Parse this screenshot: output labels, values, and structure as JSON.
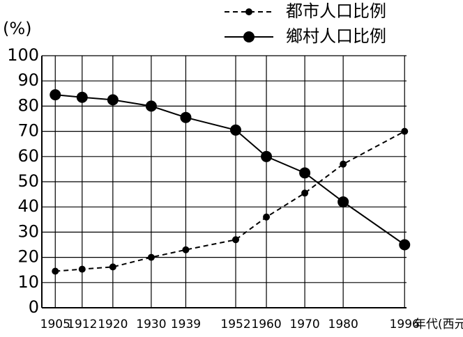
{
  "chart_data": {
    "type": "line",
    "y_label": "(%)",
    "x_label": "年代(西元)",
    "x": [
      1905,
      1912,
      1920,
      1930,
      1939,
      1952,
      1960,
      1970,
      1980,
      1996
    ],
    "series": [
      {
        "name": "都市人口比例",
        "color": "#000000",
        "dash": true,
        "values": [
          14.5,
          15.3,
          16.2,
          20,
          23,
          27,
          36,
          45.5,
          57,
          70
        ]
      },
      {
        "name": "鄉村人口比例",
        "color": "#000000",
        "dash": false,
        "values": [
          84.5,
          83.5,
          82.5,
          80,
          75.5,
          70.5,
          60,
          53.5,
          42,
          25
        ]
      }
    ],
    "xlim": [
      1901.5,
      1996.5
    ],
    "xticks": [
      1905,
      1912,
      1920,
      1930,
      1939,
      1952,
      1960,
      1970,
      1980,
      1996
    ],
    "ylim": [
      0,
      100
    ],
    "yticks": [
      0,
      10,
      20,
      30,
      40,
      50,
      60,
      70,
      80,
      90,
      100
    ],
    "grid": true
  }
}
